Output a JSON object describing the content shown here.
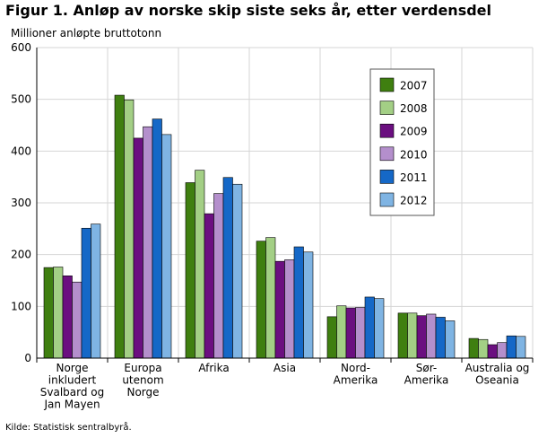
{
  "title": "Figur 1. Anløp av norske skip siste seks år, etter verdensdel",
  "source": "Kilde: Statistisk sentralbyrå.",
  "chart_data": {
    "type": "bar",
    "title": "Figur 1. Anløp av norske skip siste seks år, etter verdensdel",
    "ylabel": "Millioner anløpte bruttotonn",
    "xlabel": "",
    "ylim": [
      0,
      600
    ],
    "yticks": [
      0,
      100,
      200,
      300,
      400,
      500,
      600
    ],
    "grid": true,
    "legend_position": "top-right",
    "categories": [
      [
        "Norge",
        "inkludert",
        "Svalbard og",
        "Jan Mayen"
      ],
      [
        "Europa",
        "utenom",
        "Norge"
      ],
      [
        "Afrika"
      ],
      [
        "Asia"
      ],
      [
        "Nord-",
        "Amerika"
      ],
      [
        "Sør-",
        "Amerika"
      ],
      [
        "Australia og",
        "Oseania"
      ]
    ],
    "series": [
      {
        "name": "2007",
        "color": "#3f7f10",
        "values": [
          175,
          508,
          339,
          226,
          80,
          87,
          38
        ]
      },
      {
        "name": "2008",
        "color": "#a3cf85",
        "values": [
          176,
          499,
          363,
          233,
          101,
          87,
          36
        ]
      },
      {
        "name": "2009",
        "color": "#6b0f80",
        "values": [
          159,
          425,
          279,
          187,
          97,
          82,
          26
        ]
      },
      {
        "name": "2010",
        "color": "#b48fcc",
        "values": [
          147,
          447,
          318,
          190,
          98,
          85,
          30
        ]
      },
      {
        "name": "2011",
        "color": "#1568c7",
        "values": [
          251,
          462,
          349,
          215,
          118,
          79,
          43
        ]
      },
      {
        "name": "2012",
        "color": "#7fb4e3",
        "values": [
          259,
          432,
          336,
          205,
          115,
          72,
          42
        ]
      }
    ]
  }
}
